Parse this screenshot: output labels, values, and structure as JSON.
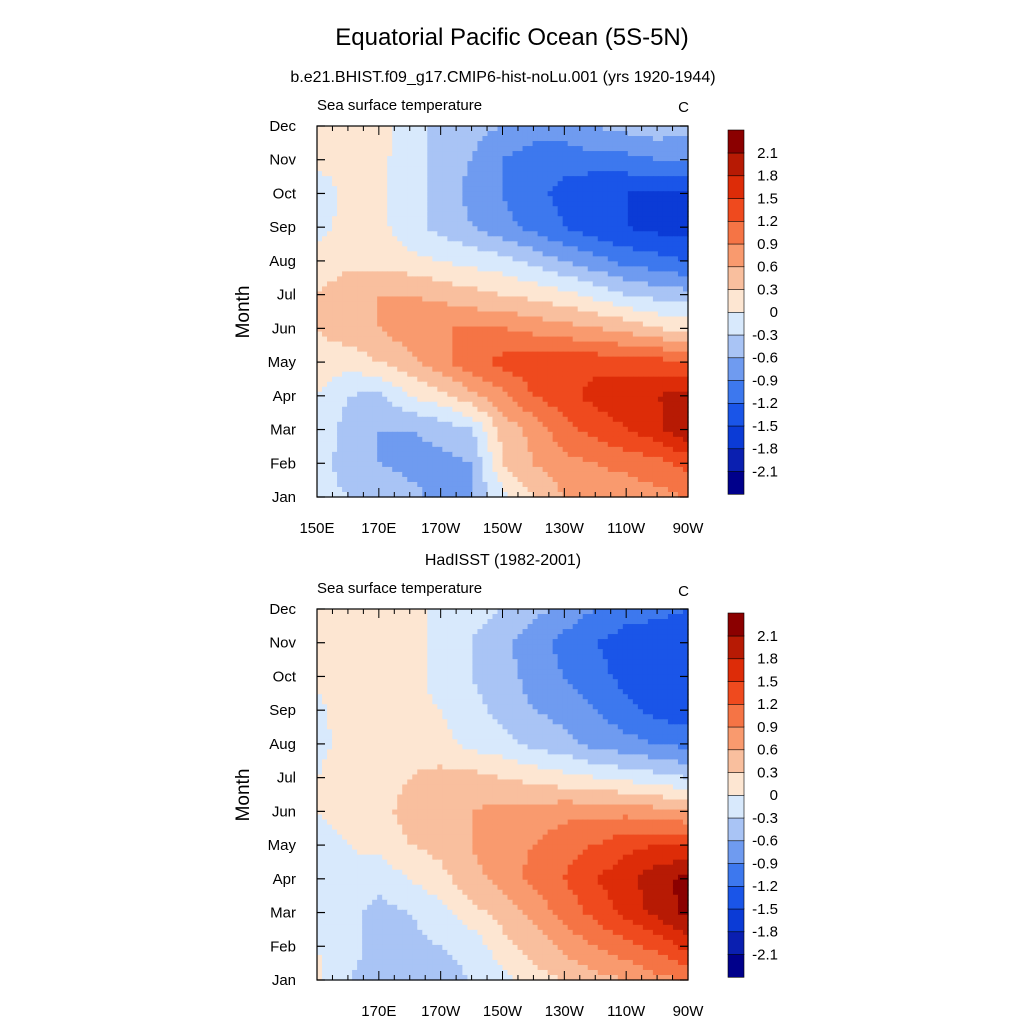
{
  "title": "Equatorial Pacific Ocean (5S-5N)",
  "colors": {
    "levels": [
      "#00008b",
      "#0a1fb0",
      "#0b3bd6",
      "#1a55e8",
      "#3d78ee",
      "#6f9bf0",
      "#a9c4f5",
      "#d8e9fc",
      "#fde6d2",
      "#f9bf9e",
      "#f99a6e",
      "#f57445",
      "#ef4a1e",
      "#dd2c08",
      "#b71a04",
      "#8b0000"
    ]
  },
  "chart_data": [
    {
      "type": "heatmap",
      "title": "b.e21.BHIST.f09_g17.CMIP6-hist-noLu.001 (yrs 1920-1944)",
      "left_label": "Sea surface temperature",
      "units_label": "C",
      "ylabel": "Month",
      "x_tick_labels": [
        "150E",
        "170E",
        "170W",
        "150W",
        "130W",
        "110W",
        "90W"
      ],
      "y_tick_labels": [
        "Jan",
        "Feb",
        "Mar",
        "Apr",
        "May",
        "Jun",
        "Jul",
        "Aug",
        "Sep",
        "Oct",
        "Nov",
        "Dec"
      ],
      "colorbar_labels": [
        "-2.1",
        "-1.8",
        "-1.5",
        "-1.2",
        "-0.9",
        "-0.6",
        "-0.3",
        "0",
        "0.3",
        "0.6",
        "0.9",
        "1.2",
        "1.5",
        "1.8",
        "2.1"
      ],
      "colorbar_thresholds": [
        -2.1,
        -1.8,
        -1.5,
        -1.2,
        -0.9,
        -0.6,
        -0.3,
        0,
        0.3,
        0.6,
        0.9,
        1.2,
        1.5,
        1.8,
        2.1
      ],
      "x": [
        150,
        160,
        170,
        180,
        190,
        200,
        210,
        220,
        230,
        240,
        250,
        260,
        270
      ],
      "y": [
        "Jan",
        "Feb",
        "Mar",
        "Apr",
        "May",
        "Jun",
        "Jul",
        "Aug",
        "Sep",
        "Oct",
        "Nov",
        "Dec"
      ],
      "z": [
        [
          -0.2,
          -0.3,
          -0.3,
          -0.5,
          -0.7,
          -0.6,
          -0.1,
          0.3,
          0.6,
          0.7,
          0.7,
          0.8,
          0.9
        ],
        [
          -0.2,
          -0.4,
          -0.6,
          -0.7,
          -0.7,
          -0.6,
          0.3,
          0.6,
          0.8,
          0.9,
          1.0,
          1.1,
          1.3
        ],
        [
          -0.1,
          -0.4,
          -0.6,
          -0.6,
          -0.5,
          -0.3,
          0.4,
          0.7,
          1.1,
          1.3,
          1.5,
          1.7,
          2.1
        ],
        [
          0.0,
          -0.3,
          -0.4,
          0.0,
          0.2,
          0.5,
          0.8,
          1.2,
          1.4,
          1.6,
          1.7,
          1.8,
          1.9
        ],
        [
          0.2,
          0.1,
          0.3,
          0.5,
          0.8,
          1.1,
          1.3,
          1.4,
          1.4,
          1.4,
          1.3,
          1.3,
          1.2
        ],
        [
          0.3,
          0.5,
          0.6,
          0.8,
          0.9,
          0.9,
          0.9,
          0.8,
          0.7,
          0.6,
          0.5,
          0.3,
          0.2
        ],
        [
          0.3,
          0.5,
          0.6,
          0.6,
          0.5,
          0.4,
          0.3,
          0.2,
          0.1,
          -0.1,
          -0.3,
          -0.4,
          -0.5
        ],
        [
          0.1,
          0.2,
          0.2,
          0.1,
          0.0,
          -0.1,
          -0.2,
          -0.4,
          -0.6,
          -0.8,
          -1.0,
          -1.1,
          -1.2
        ],
        [
          -0.1,
          0.1,
          0.1,
          -0.2,
          -0.4,
          -0.6,
          -0.8,
          -1.0,
          -1.2,
          -1.4,
          -1.5,
          -1.6,
          -1.6
        ],
        [
          -0.2,
          0.1,
          0.1,
          -0.2,
          -0.4,
          -0.7,
          -0.9,
          -1.1,
          -1.3,
          -1.5,
          -1.5,
          -1.5,
          -1.5
        ],
        [
          0.1,
          0.1,
          0.1,
          -0.2,
          -0.4,
          -0.6,
          -0.9,
          -1.1,
          -1.1,
          -1.0,
          -1.0,
          -0.9,
          -0.9
        ],
        [
          0.2,
          0.2,
          0.2,
          -0.2,
          -0.4,
          -0.5,
          -0.6,
          -0.7,
          -0.7,
          -0.6,
          -0.5,
          -0.4,
          -0.5
        ]
      ]
    },
    {
      "type": "heatmap",
      "title": "HadISST (1982-2001)",
      "left_label": "Sea surface temperature",
      "units_label": "C",
      "ylabel": "Month",
      "x_tick_labels": [
        "",
        "170E",
        "170W",
        "150W",
        "130W",
        "110W",
        "90W"
      ],
      "y_tick_labels": [
        "Jan",
        "Feb",
        "Mar",
        "Apr",
        "May",
        "Jun",
        "Jul",
        "Aug",
        "Sep",
        "Oct",
        "Nov",
        "Dec"
      ],
      "colorbar_labels": [
        "-2.1",
        "-1.8",
        "-1.5",
        "-1.2",
        "-0.9",
        "-0.6",
        "-0.3",
        "0",
        "0.3",
        "0.6",
        "0.9",
        "1.2",
        "1.5",
        "1.8",
        "2.1"
      ],
      "colorbar_thresholds": [
        -2.1,
        -1.8,
        -1.5,
        -1.2,
        -0.9,
        -0.6,
        -0.3,
        0,
        0.3,
        0.6,
        0.9,
        1.2,
        1.5,
        1.8,
        2.1
      ],
      "x": [
        150,
        160,
        170,
        180,
        190,
        200,
        210,
        220,
        230,
        240,
        250,
        260,
        270
      ],
      "y": [
        "Jan",
        "Feb",
        "Mar",
        "Apr",
        "May",
        "Jun",
        "Jul",
        "Aug",
        "Sep",
        "Oct",
        "Nov",
        "Dec"
      ],
      "z": [
        [
          0.1,
          -0.3,
          -0.4,
          -0.4,
          -0.4,
          -0.3,
          -0.1,
          0.2,
          0.3,
          0.5,
          0.6,
          0.8,
          0.9
        ],
        [
          0.0,
          -0.2,
          -0.4,
          -0.4,
          -0.3,
          -0.2,
          0.2,
          0.4,
          0.7,
          0.9,
          1.1,
          1.3,
          1.6
        ],
        [
          -0.1,
          -0.2,
          -0.4,
          -0.3,
          -0.1,
          0.2,
          0.4,
          0.7,
          1.0,
          1.3,
          1.6,
          1.9,
          2.2
        ],
        [
          -0.1,
          -0.1,
          -0.2,
          0.0,
          0.2,
          0.5,
          0.7,
          1.0,
          1.2,
          1.5,
          1.7,
          2.0,
          2.2
        ],
        [
          -0.1,
          0.0,
          0.1,
          0.3,
          0.4,
          0.6,
          0.8,
          0.9,
          1.1,
          1.2,
          1.4,
          1.5,
          1.5
        ],
        [
          0.0,
          0.1,
          0.2,
          0.4,
          0.5,
          0.6,
          0.7,
          0.7,
          0.8,
          0.8,
          0.8,
          0.7,
          0.6
        ],
        [
          0.0,
          0.2,
          0.2,
          0.3,
          0.4,
          0.4,
          0.3,
          0.2,
          0.1,
          0.0,
          -0.1,
          -0.2,
          -0.3
        ],
        [
          -0.1,
          0.1,
          0.2,
          0.2,
          0.1,
          -0.1,
          -0.2,
          -0.4,
          -0.5,
          -0.7,
          -0.8,
          -0.9,
          -1.0
        ],
        [
          -0.1,
          0.2,
          0.3,
          0.1,
          0.0,
          -0.2,
          -0.4,
          -0.6,
          -0.7,
          -0.9,
          -1.1,
          -1.3,
          -1.4
        ],
        [
          0.1,
          0.1,
          0.2,
          0.1,
          -0.1,
          -0.3,
          -0.5,
          -0.7,
          -0.9,
          -1.1,
          -1.3,
          -1.5,
          -1.5
        ],
        [
          0.1,
          0.1,
          0.1,
          0.1,
          -0.1,
          -0.3,
          -0.5,
          -0.8,
          -1.0,
          -1.2,
          -1.3,
          -1.4,
          -1.4
        ],
        [
          0.1,
          0.1,
          0.1,
          0.1,
          -0.1,
          -0.2,
          -0.3,
          -0.5,
          -0.7,
          -0.9,
          -1.1,
          -1.1,
          -1.2
        ]
      ]
    }
  ]
}
